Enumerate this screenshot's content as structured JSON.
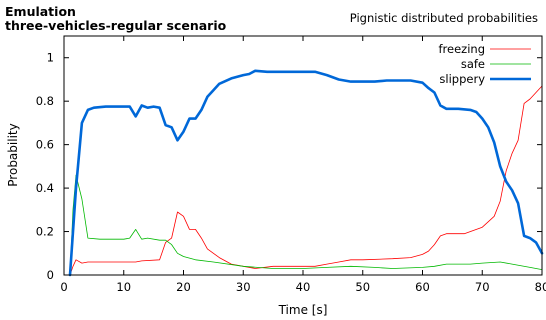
{
  "header": {
    "title_line1": "Emulation",
    "title_line2": "three-vehicles-regular scenario",
    "subtitle": "Pignistic distributed probabilities"
  },
  "chart_data": {
    "type": "line",
    "xlabel": "Time [s]",
    "ylabel": "Probability",
    "xlim": [
      0,
      80
    ],
    "ylim": [
      0,
      1.1
    ],
    "xticks": [
      0,
      10,
      20,
      30,
      40,
      50,
      60,
      70,
      80
    ],
    "yticks": [
      0,
      0.2,
      0.4,
      0.6,
      0.8,
      1
    ],
    "legend_position": "top-right",
    "grid": false,
    "series": [
      {
        "name": "freezing",
        "color": "#ff0000",
        "width": 0.8,
        "points": [
          [
            1,
            0
          ],
          [
            1.5,
            0.04
          ],
          [
            2,
            0.07
          ],
          [
            3,
            0.055
          ],
          [
            4,
            0.06
          ],
          [
            6,
            0.06
          ],
          [
            10,
            0.06
          ],
          [
            12,
            0.06
          ],
          [
            13,
            0.065
          ],
          [
            16,
            0.07
          ],
          [
            17,
            0.15
          ],
          [
            18,
            0.17
          ],
          [
            19,
            0.29
          ],
          [
            20,
            0.27
          ],
          [
            21,
            0.21
          ],
          [
            22,
            0.21
          ],
          [
            23,
            0.17
          ],
          [
            24,
            0.12
          ],
          [
            26,
            0.08
          ],
          [
            28,
            0.05
          ],
          [
            30,
            0.04
          ],
          [
            32,
            0.03
          ],
          [
            35,
            0.04
          ],
          [
            40,
            0.04
          ],
          [
            42,
            0.04
          ],
          [
            44,
            0.05
          ],
          [
            46,
            0.06
          ],
          [
            48,
            0.07
          ],
          [
            50,
            0.07
          ],
          [
            55,
            0.075
          ],
          [
            58,
            0.08
          ],
          [
            60,
            0.095
          ],
          [
            61,
            0.11
          ],
          [
            62,
            0.14
          ],
          [
            63,
            0.18
          ],
          [
            64,
            0.19
          ],
          [
            67,
            0.19
          ],
          [
            70,
            0.22
          ],
          [
            72,
            0.27
          ],
          [
            73,
            0.34
          ],
          [
            74,
            0.48
          ],
          [
            75,
            0.56
          ],
          [
            76,
            0.62
          ],
          [
            77,
            0.79
          ],
          [
            78,
            0.81
          ],
          [
            79,
            0.84
          ],
          [
            80,
            0.87
          ]
        ]
      },
      {
        "name": "safe",
        "color": "#00b800",
        "width": 0.8,
        "points": [
          [
            1,
            0
          ],
          [
            1.5,
            0.3
          ],
          [
            2,
            0.46
          ],
          [
            3,
            0.35
          ],
          [
            4,
            0.17
          ],
          [
            6,
            0.165
          ],
          [
            10,
            0.165
          ],
          [
            11,
            0.17
          ],
          [
            12,
            0.21
          ],
          [
            13,
            0.165
          ],
          [
            14,
            0.17
          ],
          [
            16,
            0.16
          ],
          [
            17,
            0.16
          ],
          [
            18,
            0.14
          ],
          [
            19,
            0.1
          ],
          [
            20,
            0.085
          ],
          [
            22,
            0.07
          ],
          [
            25,
            0.06
          ],
          [
            30,
            0.04
          ],
          [
            35,
            0.03
          ],
          [
            40,
            0.03
          ],
          [
            44,
            0.035
          ],
          [
            48,
            0.04
          ],
          [
            52,
            0.035
          ],
          [
            55,
            0.03
          ],
          [
            60,
            0.035
          ],
          [
            62,
            0.04
          ],
          [
            64,
            0.05
          ],
          [
            68,
            0.05
          ],
          [
            70,
            0.055
          ],
          [
            73,
            0.06
          ],
          [
            75,
            0.05
          ],
          [
            78,
            0.035
          ],
          [
            80,
            0.025
          ]
        ]
      },
      {
        "name": "slippery",
        "color": "#0068d8",
        "width": 2.6,
        "points": [
          [
            1,
            0
          ],
          [
            2,
            0.4
          ],
          [
            3,
            0.7
          ],
          [
            4,
            0.76
          ],
          [
            5,
            0.77
          ],
          [
            7,
            0.775
          ],
          [
            10,
            0.775
          ],
          [
            11,
            0.775
          ],
          [
            12,
            0.73
          ],
          [
            13,
            0.78
          ],
          [
            14,
            0.77
          ],
          [
            15,
            0.775
          ],
          [
            16,
            0.77
          ],
          [
            17,
            0.69
          ],
          [
            18,
            0.68
          ],
          [
            19,
            0.62
          ],
          [
            20,
            0.66
          ],
          [
            21,
            0.72
          ],
          [
            22,
            0.72
          ],
          [
            23,
            0.76
          ],
          [
            24,
            0.82
          ],
          [
            25,
            0.85
          ],
          [
            26,
            0.88
          ],
          [
            28,
            0.905
          ],
          [
            30,
            0.92
          ],
          [
            31,
            0.925
          ],
          [
            32,
            0.94
          ],
          [
            34,
            0.935
          ],
          [
            36,
            0.935
          ],
          [
            40,
            0.935
          ],
          [
            42,
            0.935
          ],
          [
            44,
            0.92
          ],
          [
            46,
            0.9
          ],
          [
            48,
            0.89
          ],
          [
            52,
            0.89
          ],
          [
            54,
            0.895
          ],
          [
            58,
            0.895
          ],
          [
            60,
            0.885
          ],
          [
            61,
            0.86
          ],
          [
            62,
            0.84
          ],
          [
            63,
            0.78
          ],
          [
            64,
            0.765
          ],
          [
            66,
            0.765
          ],
          [
            68,
            0.76
          ],
          [
            69,
            0.75
          ],
          [
            70,
            0.72
          ],
          [
            71,
            0.68
          ],
          [
            72,
            0.61
          ],
          [
            73,
            0.5
          ],
          [
            74,
            0.43
          ],
          [
            75,
            0.39
          ],
          [
            76,
            0.33
          ],
          [
            77,
            0.18
          ],
          [
            78,
            0.17
          ],
          [
            79,
            0.15
          ],
          [
            80,
            0.1
          ]
        ]
      }
    ]
  }
}
